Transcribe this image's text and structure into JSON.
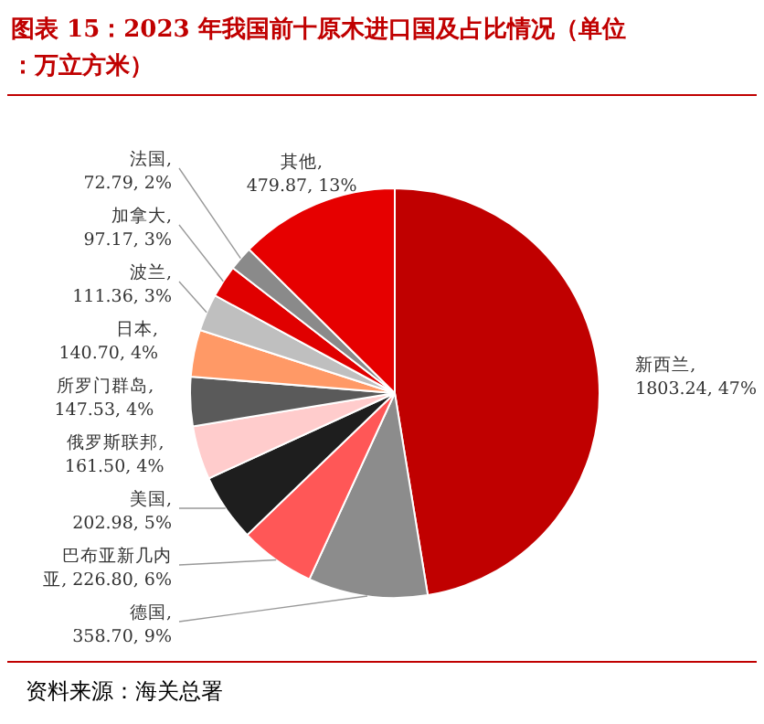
{
  "chart_data": {
    "type": "pie",
    "title": "图表 15：2023 年我国前十原木进口国及占比情况（单位：万立方米）",
    "categories": [
      "新西兰",
      "德国",
      "巴布亚新几内亚",
      "美国",
      "俄罗斯联邦",
      "所罗门群岛",
      "日本",
      "波兰",
      "加拿大",
      "法国",
      "其他"
    ],
    "values": [
      1803.24,
      358.7,
      226.8,
      202.98,
      161.5,
      147.53,
      140.7,
      111.36,
      97.17,
      72.79,
      479.87
    ],
    "value_labels": [
      ", 1803.24, 47%",
      ", 358.70, 9%",
      ", 226.80, 6%",
      ", 202.98, 5%",
      ", 161.50, 4%",
      ", 147.53, 4%",
      ", 140.70, 4%",
      ", 111.36, 3%",
      ", 97.17, 3%",
      ", 72.79, 2%",
      ", 479.87, 13%"
    ],
    "colors": [
      "#c00000",
      "#8c8c8c",
      "#ff5757",
      "#1e1e1e",
      "#ffcccc",
      "#5a5a5a",
      "#ff9966",
      "#bfbfbf",
      "#e00000",
      "#8a8a8a",
      "#e60000"
    ],
    "annotations": [
      "资料来源：海关总署"
    ]
  }
}
